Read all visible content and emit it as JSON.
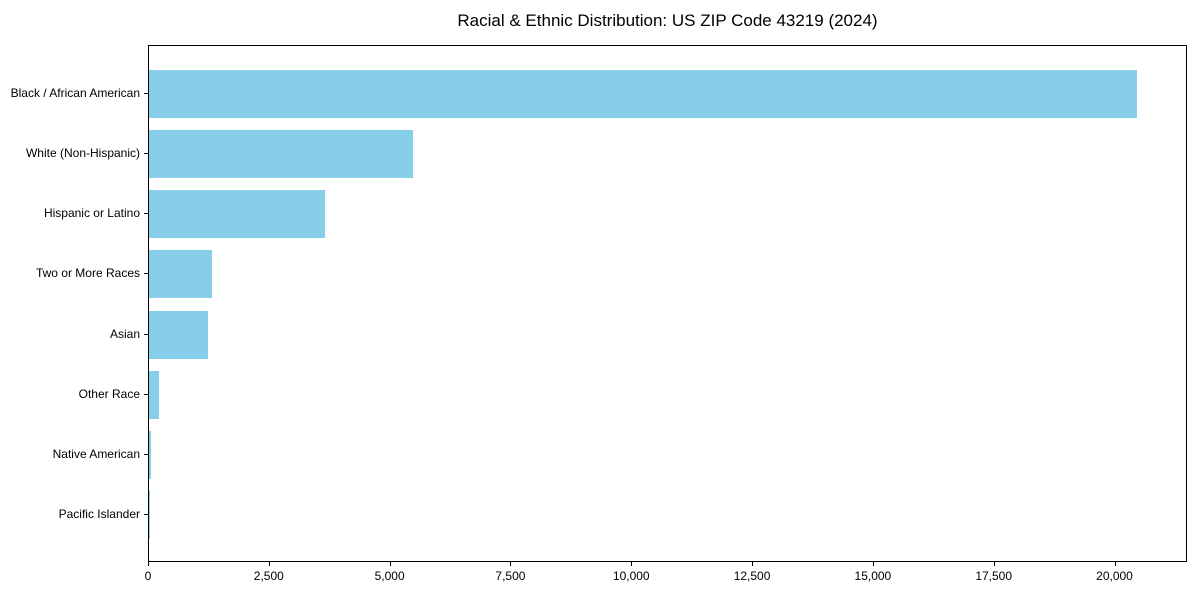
{
  "page": {
    "background_color": "#ffffff",
    "text_color": "#000000"
  },
  "chart_data": {
    "type": "bar",
    "orientation": "horizontal",
    "title": "Racial & Ethnic Distribution: US ZIP Code 43219 (2024)",
    "xlabel": "",
    "ylabel": "",
    "categories": [
      "Black / African American",
      "White (Non-Hispanic)",
      "Hispanic or Latino",
      "Two or More Races",
      "Asian",
      "Other Race",
      "Native American",
      "Pacific Islander"
    ],
    "values": [
      20450,
      5470,
      3650,
      1300,
      1220,
      205,
      35,
      15
    ],
    "bar_color": "#87ceeb",
    "xlim": [
      0,
      21500
    ],
    "xticks": [
      0,
      2500,
      5000,
      7500,
      10000,
      12500,
      15000,
      17500,
      20000
    ],
    "xtick_labels": [
      "0",
      "2,500",
      "5,000",
      "7,500",
      "10,000",
      "12,500",
      "15,000",
      "17,500",
      "20,000"
    ],
    "grid": false,
    "legend": null,
    "frame": "full-box"
  }
}
